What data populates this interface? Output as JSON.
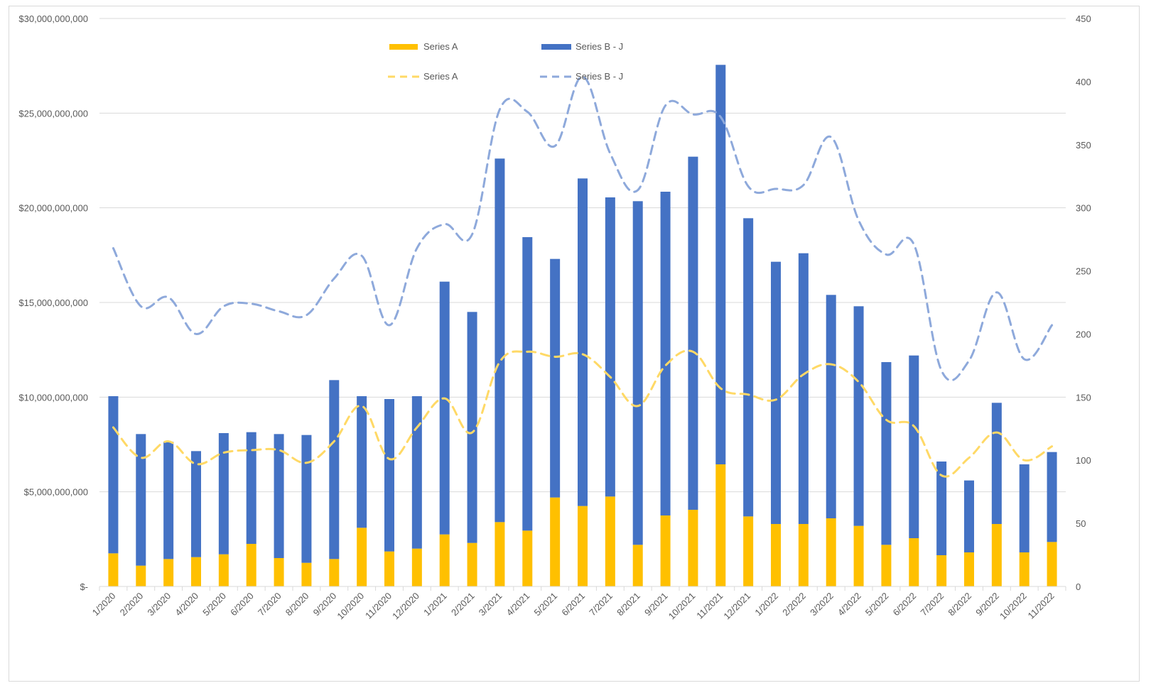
{
  "chart_data": {
    "type": "bar",
    "stacked": true,
    "title": "",
    "xlabel": "",
    "ylabel": "",
    "y2label": "",
    "categories": [
      "1/2020",
      "2/2020",
      "3/2020",
      "4/2020",
      "5/2020",
      "6/2020",
      "7/2020",
      "8/2020",
      "9/2020",
      "10/2020",
      "11/2020",
      "12/2020",
      "1/2021",
      "2/2021",
      "3/2021",
      "4/2021",
      "5/2021",
      "6/2021",
      "7/2021",
      "8/2021",
      "9/2021",
      "10/2021",
      "11/2021",
      "12/2021",
      "1/2022",
      "2/2022",
      "3/2022",
      "4/2022",
      "5/2022",
      "6/2022",
      "7/2022",
      "8/2022",
      "9/2022",
      "10/2022",
      "11/2022"
    ],
    "ylim": [
      0,
      30000000000
    ],
    "y2lim": [
      0,
      450
    ],
    "yticks": [
      0,
      5000000000,
      10000000000,
      15000000000,
      20000000000,
      25000000000,
      30000000000
    ],
    "ytick_labels": [
      "$-",
      "$5,000,000,000",
      "$10,000,000,000",
      "$15,000,000,000",
      "$20,000,000,000",
      "$25,000,000,000",
      "$30,000,000,000"
    ],
    "y2ticks": [
      0,
      50,
      100,
      150,
      200,
      250,
      300,
      350,
      400,
      450
    ],
    "y2tick_labels": [
      "0",
      "50",
      "100",
      "150",
      "200",
      "250",
      "300",
      "350",
      "400",
      "450"
    ],
    "bar_series": [
      {
        "name": "Series A",
        "color": "#FFC000",
        "values": [
          1750000000,
          1100000000,
          1450000000,
          1550000000,
          1700000000,
          2250000000,
          1500000000,
          1250000000,
          1450000000,
          3100000000,
          1850000000,
          2000000000,
          2750000000,
          2300000000,
          3400000000,
          2950000000,
          4700000000,
          4250000000,
          4750000000,
          2200000000,
          3750000000,
          4050000000,
          6450000000,
          3700000000,
          3300000000,
          3300000000,
          3600000000,
          3200000000,
          2200000000,
          2550000000,
          1650000000,
          1800000000,
          3300000000,
          1800000000,
          2350000000
        ]
      },
      {
        "name": "Series B - J",
        "color": "#4472C4",
        "values": [
          8300000000,
          6950000000,
          6200000000,
          5600000000,
          6400000000,
          5900000000,
          6550000000,
          6750000000,
          9450000000,
          6950000000,
          8050000000,
          8050000000,
          13350000000,
          12200000000,
          19200000000,
          15500000000,
          12600000000,
          17300000000,
          15800000000,
          18150000000,
          17100000000,
          18650000000,
          21100000000,
          15750000000,
          13850000000,
          14300000000,
          11800000000,
          11600000000,
          9650000000,
          9650000000,
          4950000000,
          3800000000,
          6400000000,
          4650000000,
          4750000000
        ]
      }
    ],
    "line_series": [
      {
        "name": "Series A",
        "color": "#FFD966",
        "axis": "secondary",
        "values": [
          126,
          102,
          115,
          97,
          106,
          108,
          108,
          98,
          115,
          143,
          101,
          126,
          149,
          122,
          178,
          186,
          182,
          184,
          166,
          143,
          175,
          186,
          157,
          152,
          148,
          168,
          176,
          162,
          132,
          127,
          88,
          102,
          122,
          100,
          111
        ]
      },
      {
        "name": "Series B - J",
        "color": "#8EA9DB",
        "axis": "secondary",
        "values": [
          268,
          222,
          229,
          200,
          222,
          224,
          218,
          215,
          244,
          262,
          207,
          268,
          287,
          279,
          378,
          376,
          349,
          404,
          343,
          314,
          381,
          374,
          372,
          317,
          315,
          318,
          356,
          290,
          263,
          271,
          171,
          179,
          233,
          180,
          207
        ]
      }
    ],
    "legend": {
      "position": "top-left",
      "bar_entries": [
        "Series A",
        "Series B - J"
      ],
      "line_entries": [
        "Series A",
        "Series B - J"
      ]
    },
    "grid": true
  }
}
